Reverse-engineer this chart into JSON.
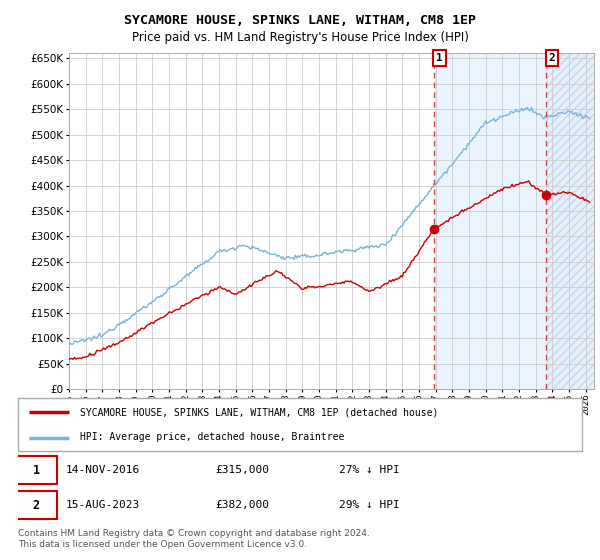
{
  "title": "SYCAMORE HOUSE, SPINKS LANE, WITHAM, CM8 1EP",
  "subtitle": "Price paid vs. HM Land Registry's House Price Index (HPI)",
  "legend_house": "SYCAMORE HOUSE, SPINKS LANE, WITHAM, CM8 1EP (detached house)",
  "legend_hpi": "HPI: Average price, detached house, Braintree",
  "transaction1": {
    "label": "1",
    "date": "14-NOV-2016",
    "price": "£315,000",
    "note": "27% ↓ HPI"
  },
  "transaction2": {
    "label": "2",
    "date": "15-AUG-2023",
    "price": "£382,000",
    "note": "29% ↓ HPI"
  },
  "t1_date_num": 2016.875,
  "t2_date_num": 2023.625,
  "t1_price": 315000,
  "t2_price": 382000,
  "hpi_color": "#7ab3d4",
  "house_color": "#cc0000",
  "shaded_color": "#ddeeff",
  "dashed_color": "#cc4444",
  "xmin": 1995.0,
  "xmax": 2026.5,
  "ymin": 0,
  "ymax": 660000,
  "yticks": [
    0,
    50000,
    100000,
    150000,
    200000,
    250000,
    300000,
    350000,
    400000,
    450000,
    500000,
    550000,
    600000,
    650000
  ],
  "footer": "Contains HM Land Registry data © Crown copyright and database right 2024.\nThis data is licensed under the Open Government Licence v3.0.",
  "plot_bg": "#f8faff",
  "fig_bg": "#ffffff"
}
